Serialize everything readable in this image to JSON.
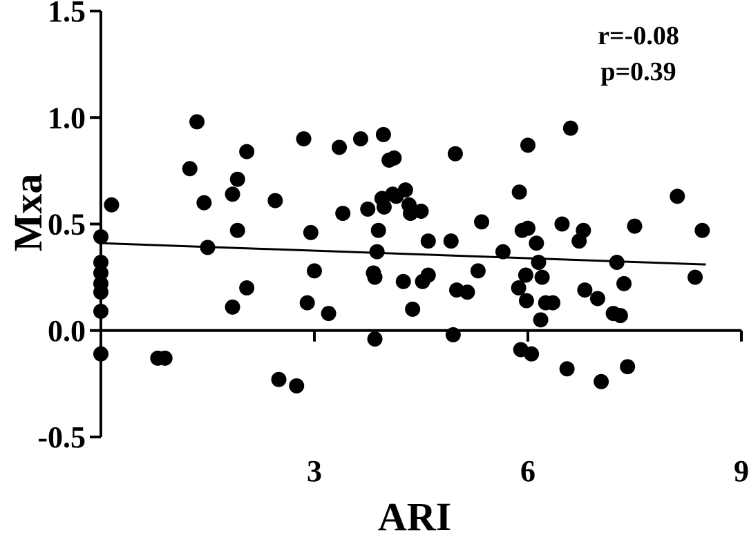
{
  "chart_data": {
    "type": "scatter",
    "xlabel": "ARI",
    "ylabel": "Mxa",
    "xlim": [
      0,
      9
    ],
    "ylim": [
      -0.5,
      1.5
    ],
    "xticks": [
      3,
      6,
      9
    ],
    "yticks": [
      -0.5,
      0.0,
      0.5,
      1.0,
      1.5
    ],
    "ytick_labels": [
      "-0.5",
      "0.0",
      "0.5",
      "1.0",
      "1.5"
    ],
    "xtick_labels": [
      "3",
      "6",
      "9"
    ],
    "annotations": [
      "r=-0.08",
      "p=0.39"
    ],
    "regression_line": {
      "x": [
        0,
        8.5
      ],
      "y": [
        0.41,
        0.31
      ]
    },
    "points": [
      {
        "x": 0.0,
        "y": 0.44
      },
      {
        "x": 0.0,
        "y": 0.32
      },
      {
        "x": 0.0,
        "y": 0.27
      },
      {
        "x": 0.0,
        "y": 0.22
      },
      {
        "x": 0.0,
        "y": 0.18
      },
      {
        "x": 0.0,
        "y": 0.09
      },
      {
        "x": 0.0,
        "y": -0.11
      },
      {
        "x": 0.15,
        "y": 0.59
      },
      {
        "x": 0.8,
        "y": -0.13
      },
      {
        "x": 0.9,
        "y": -0.13
      },
      {
        "x": 1.25,
        "y": 0.76
      },
      {
        "x": 1.35,
        "y": 0.98
      },
      {
        "x": 1.45,
        "y": 0.6
      },
      {
        "x": 1.5,
        "y": 0.39
      },
      {
        "x": 1.85,
        "y": 0.11
      },
      {
        "x": 1.85,
        "y": 0.64
      },
      {
        "x": 1.92,
        "y": 0.71
      },
      {
        "x": 1.92,
        "y": 0.47
      },
      {
        "x": 2.05,
        "y": 0.84
      },
      {
        "x": 2.05,
        "y": 0.2
      },
      {
        "x": 2.45,
        "y": 0.61
      },
      {
        "x": 2.5,
        "y": -0.23
      },
      {
        "x": 2.75,
        "y": -0.26
      },
      {
        "x": 2.85,
        "y": 0.9
      },
      {
        "x": 2.9,
        "y": 0.13
      },
      {
        "x": 2.95,
        "y": 0.46
      },
      {
        "x": 3.0,
        "y": 0.28
      },
      {
        "x": 3.2,
        "y": 0.08
      },
      {
        "x": 3.35,
        "y": 0.86
      },
      {
        "x": 3.4,
        "y": 0.55
      },
      {
        "x": 3.65,
        "y": 0.9
      },
      {
        "x": 3.75,
        "y": 0.57
      },
      {
        "x": 3.83,
        "y": 0.27
      },
      {
        "x": 3.85,
        "y": 0.25
      },
      {
        "x": 3.85,
        "y": -0.04
      },
      {
        "x": 3.88,
        "y": 0.37
      },
      {
        "x": 3.9,
        "y": 0.47
      },
      {
        "x": 3.95,
        "y": 0.62
      },
      {
        "x": 3.97,
        "y": 0.92
      },
      {
        "x": 3.98,
        "y": 0.58
      },
      {
        "x": 4.05,
        "y": 0.8
      },
      {
        "x": 4.1,
        "y": 0.64
      },
      {
        "x": 4.12,
        "y": 0.81
      },
      {
        "x": 4.15,
        "y": 0.63
      },
      {
        "x": 4.25,
        "y": 0.23
      },
      {
        "x": 4.28,
        "y": 0.66
      },
      {
        "x": 4.33,
        "y": 0.59
      },
      {
        "x": 4.35,
        "y": 0.55
      },
      {
        "x": 4.38,
        "y": 0.1
      },
      {
        "x": 4.5,
        "y": 0.56
      },
      {
        "x": 4.52,
        "y": 0.23
      },
      {
        "x": 4.6,
        "y": 0.26
      },
      {
        "x": 4.6,
        "y": 0.42
      },
      {
        "x": 4.92,
        "y": 0.42
      },
      {
        "x": 4.95,
        "y": -0.02
      },
      {
        "x": 4.98,
        "y": 0.83
      },
      {
        "x": 5.0,
        "y": 0.19
      },
      {
        "x": 5.15,
        "y": 0.18
      },
      {
        "x": 5.3,
        "y": 0.28
      },
      {
        "x": 5.35,
        "y": 0.51
      },
      {
        "x": 5.65,
        "y": 0.37
      },
      {
        "x": 5.87,
        "y": 0.2
      },
      {
        "x": 5.88,
        "y": 0.65
      },
      {
        "x": 5.9,
        "y": -0.09
      },
      {
        "x": 5.92,
        "y": 0.47
      },
      {
        "x": 5.97,
        "y": 0.26
      },
      {
        "x": 5.98,
        "y": 0.14
      },
      {
        "x": 6.0,
        "y": 0.87
      },
      {
        "x": 6.0,
        "y": 0.48
      },
      {
        "x": 6.05,
        "y": -0.11
      },
      {
        "x": 6.12,
        "y": 0.41
      },
      {
        "x": 6.15,
        "y": 0.32
      },
      {
        "x": 6.18,
        "y": 0.05
      },
      {
        "x": 6.2,
        "y": 0.25
      },
      {
        "x": 6.25,
        "y": 0.13
      },
      {
        "x": 6.35,
        "y": 0.13
      },
      {
        "x": 6.48,
        "y": 0.5
      },
      {
        "x": 6.55,
        "y": -0.18
      },
      {
        "x": 6.6,
        "y": 0.95
      },
      {
        "x": 6.72,
        "y": 0.42
      },
      {
        "x": 6.78,
        "y": 0.47
      },
      {
        "x": 6.8,
        "y": 0.19
      },
      {
        "x": 6.98,
        "y": 0.15
      },
      {
        "x": 7.03,
        "y": -0.24
      },
      {
        "x": 7.2,
        "y": 0.08
      },
      {
        "x": 7.25,
        "y": 0.32
      },
      {
        "x": 7.3,
        "y": 0.07
      },
      {
        "x": 7.35,
        "y": 0.22
      },
      {
        "x": 7.4,
        "y": -0.17
      },
      {
        "x": 7.5,
        "y": 0.49
      },
      {
        "x": 8.1,
        "y": 0.63
      },
      {
        "x": 8.35,
        "y": 0.25
      },
      {
        "x": 8.45,
        "y": 0.47
      }
    ],
    "grid": false,
    "point_color": "#000000"
  }
}
